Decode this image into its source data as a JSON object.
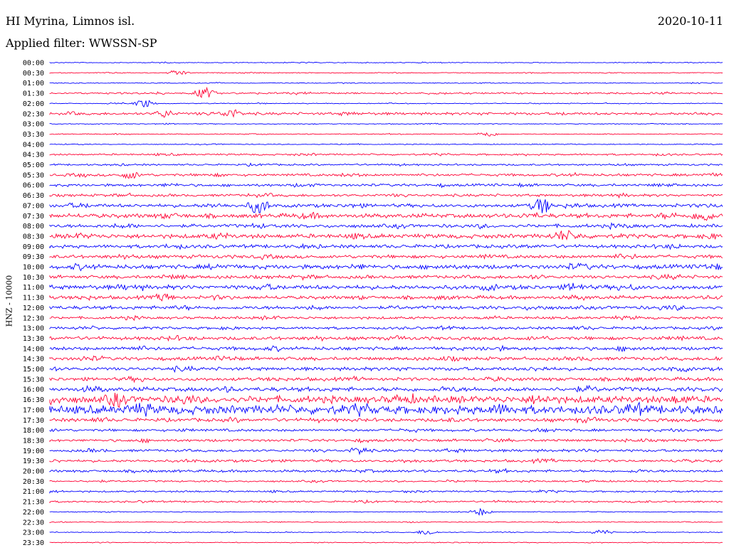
{
  "header": {
    "station": "HI Myrina, Limnos isl.",
    "date": "2020-10-11",
    "filter": "Applied filter: WWSSN-SP"
  },
  "chart_data": {
    "type": "line",
    "chart_kind": "helicorder",
    "ylabel": "HNZ - 10000",
    "row_interval_minutes": 30,
    "row_times": [
      "00:00",
      "00:30",
      "01:00",
      "01:30",
      "02:00",
      "02:30",
      "03:00",
      "03:30",
      "04:00",
      "04:30",
      "05:00",
      "05:30",
      "06:00",
      "06:30",
      "07:00",
      "07:30",
      "08:00",
      "08:30",
      "09:00",
      "09:30",
      "10:00",
      "10:30",
      "11:00",
      "11:30",
      "12:00",
      "12:30",
      "13:00",
      "13:30",
      "14:00",
      "14:30",
      "15:00",
      "15:30",
      "16:00",
      "16:30",
      "17:00",
      "17:30",
      "18:00",
      "18:30",
      "19:00",
      "19:30",
      "20:00",
      "20:30",
      "21:00",
      "21:30",
      "22:00",
      "22:30",
      "23:00",
      "23:30"
    ],
    "colors": [
      "#0000ff",
      "#ff0033"
    ],
    "row_noise_level": [
      1,
      1,
      1,
      2,
      1,
      3,
      1,
      1,
      1,
      2,
      2,
      3,
      3,
      3,
      4,
      5,
      4,
      5,
      4,
      4,
      5,
      4,
      5,
      4,
      4,
      3,
      3,
      4,
      4,
      4,
      4,
      4,
      5,
      8,
      10,
      4,
      3,
      3,
      3,
      3,
      3,
      2,
      2,
      2,
      1,
      1,
      1,
      1
    ],
    "events": [
      {
        "row": 1,
        "x_frac": 0.19,
        "amp": 4
      },
      {
        "row": 3,
        "x_frac": 0.23,
        "amp": 8
      },
      {
        "row": 4,
        "x_frac": 0.14,
        "amp": 6
      },
      {
        "row": 5,
        "x_frac": 0.17,
        "amp": 5
      },
      {
        "row": 5,
        "x_frac": 0.27,
        "amp": 6
      },
      {
        "row": 7,
        "x_frac": 0.65,
        "amp": 4
      },
      {
        "row": 11,
        "x_frac": 0.12,
        "amp": 5
      },
      {
        "row": 14,
        "x_frac": 0.31,
        "amp": 12
      },
      {
        "row": 14,
        "x_frac": 0.73,
        "amp": 12
      },
      {
        "row": 15,
        "x_frac": 0.97,
        "amp": 8
      },
      {
        "row": 17,
        "x_frac": 0.76,
        "amp": 6
      },
      {
        "row": 22,
        "x_frac": 0.78,
        "amp": 5
      },
      {
        "row": 23,
        "x_frac": 0.17,
        "amp": 5
      },
      {
        "row": 33,
        "x_frac": 0.1,
        "amp": 8
      },
      {
        "row": 38,
        "x_frac": 0.46,
        "amp": 5
      },
      {
        "row": 44,
        "x_frac": 0.64,
        "amp": 5
      },
      {
        "row": 46,
        "x_frac": 0.56,
        "amp": 4
      },
      {
        "row": 46,
        "x_frac": 0.82,
        "amp": 4
      }
    ]
  }
}
